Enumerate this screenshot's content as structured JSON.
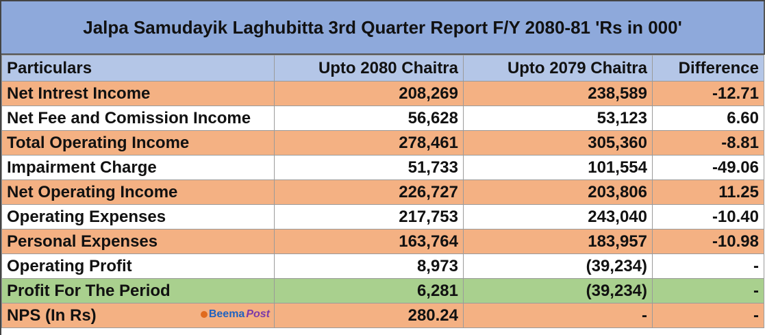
{
  "title": "Jalpa Samudayik Laghubitta 3rd Quarter Report F/Y 2080-81  'Rs in 000'",
  "headers": [
    "Particulars",
    "Upto 2080 Chaitra",
    "Upto 2079 Chaitra",
    "Difference"
  ],
  "rows": [
    {
      "label": "Net Intrest Income",
      "v2080": "208,269",
      "v2079": "238,589",
      "diff": "-12.71",
      "color": "#f4b183"
    },
    {
      "label": "Net Fee and Comission Income",
      "v2080": "56,628",
      "v2079": "53,123",
      "diff": "6.60",
      "color": "#ffffff"
    },
    {
      "label": "Total Operating Income",
      "v2080": "278,461",
      "v2079": "305,360",
      "diff": "-8.81",
      "color": "#f4b183"
    },
    {
      "label": "Impairment Charge",
      "v2080": "51,733",
      "v2079": "101,554",
      "diff": "-49.06",
      "color": "#ffffff"
    },
    {
      "label": "Net Operating Income",
      "v2080": "226,727",
      "v2079": "203,806",
      "diff": "11.25",
      "color": "#f4b183"
    },
    {
      "label": "Operating Expenses",
      "v2080": "217,753",
      "v2079": "243,040",
      "diff": "-10.40",
      "color": "#ffffff"
    },
    {
      "label": "Personal Expenses",
      "v2080": "163,764",
      "v2079": "183,957",
      "diff": "-10.98",
      "color": "#f4b183"
    },
    {
      "label": "Operating Profit",
      "v2080": "8,973",
      "v2079": "(39,234)",
      "diff": "-",
      "color": "#ffffff"
    },
    {
      "label": "Profit For The Period",
      "v2080": "6,281",
      "v2079": "(39,234)",
      "diff": "-",
      "color": "#a9d08e"
    },
    {
      "label": "NPS (In Rs)",
      "v2080": "280.24",
      "v2079": "-",
      "diff": "-",
      "color": "#f4b183"
    }
  ],
  "watermark": {
    "part1": "Beema",
    "part2": "Post"
  },
  "colors": {
    "title_bg": "#8ea9db",
    "header_bg": "#b4c6e7",
    "orange": "#f4b183",
    "green": "#a9d08e"
  }
}
